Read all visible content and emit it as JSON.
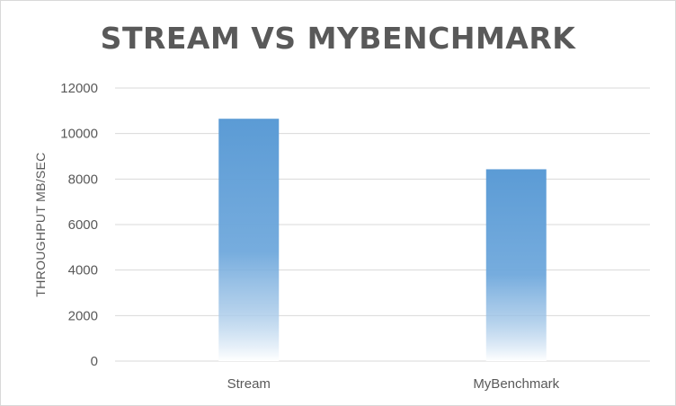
{
  "chart_data": {
    "type": "bar",
    "title": "STREAM VS MYBENCHMARK",
    "xlabel": "",
    "ylabel": "THROUGHPUT MB/SEC",
    "categories": [
      "Stream",
      "MyBenchmark"
    ],
    "values": [
      10650,
      8430
    ],
    "ylim": [
      0,
      12000
    ],
    "yticks": [
      "0",
      "2000",
      "4000",
      "6000",
      "8000",
      "10000",
      "12000"
    ],
    "grid": true,
    "legend": "none",
    "colors": {
      "bar": "#5b9bd5",
      "grid": "#d9d9d9",
      "text": "#595959",
      "title": "#595959"
    }
  }
}
